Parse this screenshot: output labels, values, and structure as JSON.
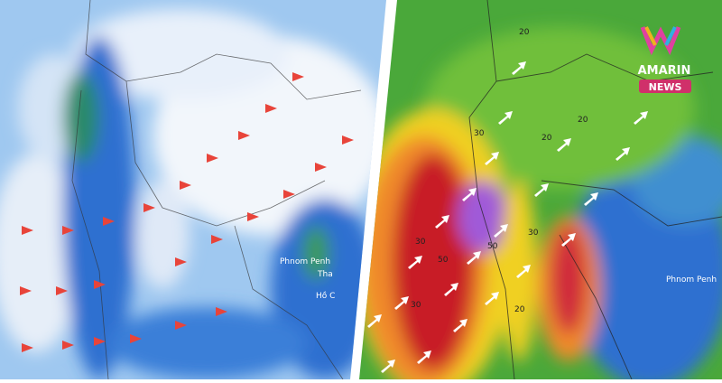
{
  "left_map": {
    "labels": [
      "Phnom Penh",
      "Tha",
      "Hồ C"
    ]
  },
  "right_map": {
    "labels": [
      "Phnom Penh"
    ],
    "contour_labels": [
      "20",
      "20",
      "20",
      "30",
      "30",
      "50",
      "50",
      "30",
      "20",
      "30"
    ]
  },
  "logo": {
    "brand": "AMARIN",
    "tag": "NEWS"
  }
}
